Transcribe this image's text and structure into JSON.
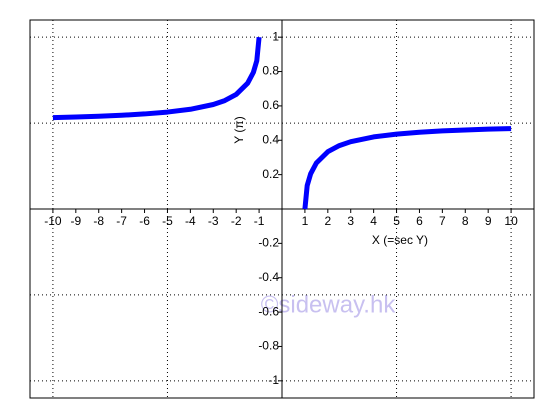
{
  "chart_data": {
    "type": "line",
    "x_label": "X (=sec Y)",
    "y_label": "Y (π)",
    "watermark": "©sideway.hk",
    "xlim": [
      -11,
      11
    ],
    "ylim": [
      -1.1,
      1.1
    ],
    "xticks": [
      -10,
      -9,
      -8,
      -7,
      -6,
      -5,
      -4,
      -3,
      -2,
      -1,
      1,
      2,
      3,
      4,
      5,
      6,
      7,
      8,
      9,
      10
    ],
    "yticks": [
      -1,
      -0.8,
      -0.6,
      -0.4,
      -0.2,
      0.2,
      0.4,
      0.6,
      0.8,
      1
    ],
    "xgrid": [
      -10,
      -5,
      5,
      10
    ],
    "ygrid": [
      -1,
      -0.5,
      0.5,
      1
    ],
    "series": [
      {
        "color": "#0000ff",
        "x": [
          -10,
          -9,
          -8,
          -7,
          -6,
          -5,
          -4,
          -3,
          -2.5,
          -2,
          -1.5,
          -1.25,
          -1.1,
          -1
        ],
        "values": [
          0.5319,
          0.5354,
          0.5399,
          0.5456,
          0.5533,
          0.5641,
          0.5804,
          0.6082,
          0.631,
          0.6667,
          0.7323,
          0.7952,
          0.8632,
          1
        ]
      },
      {
        "color": "#0000ff",
        "x": [
          1,
          1.1,
          1.25,
          1.5,
          2,
          2.5,
          3,
          4,
          5,
          6,
          7,
          8,
          9,
          10
        ],
        "values": [
          0,
          0.1368,
          0.2048,
          0.2677,
          0.3333,
          0.369,
          0.3918,
          0.4196,
          0.4359,
          0.4467,
          0.4544,
          0.4601,
          0.4646,
          0.4681
        ]
      }
    ]
  }
}
